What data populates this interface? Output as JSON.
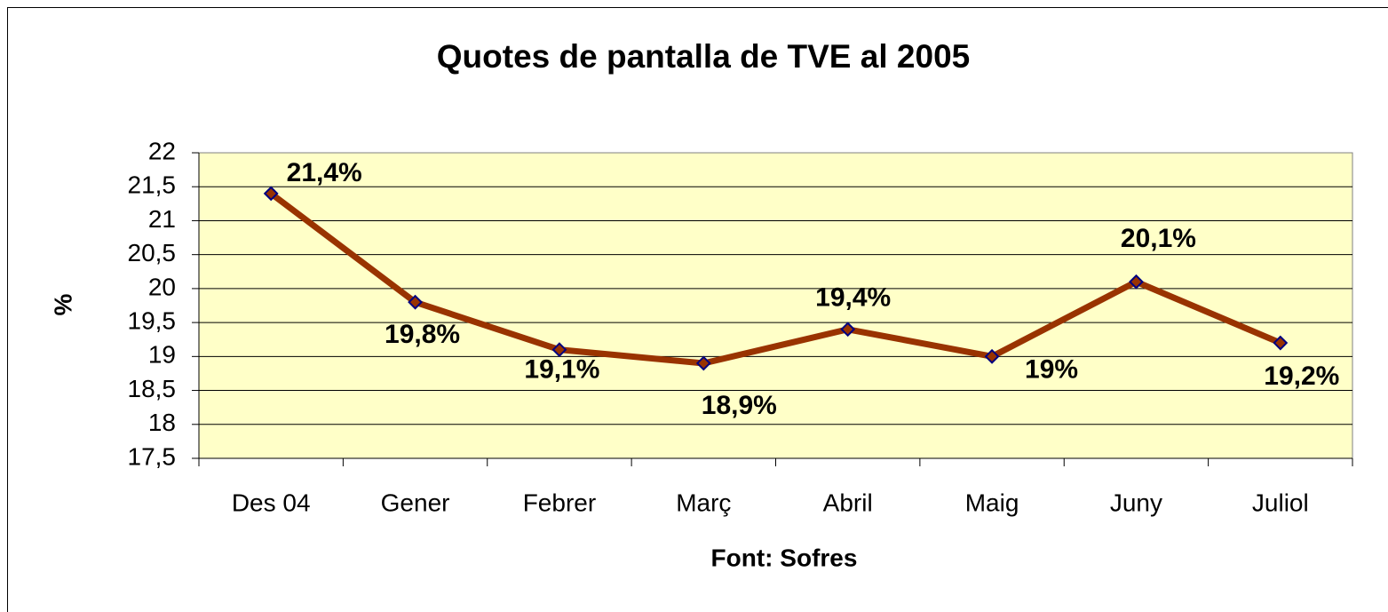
{
  "chart_data": {
    "type": "line",
    "title": "Quotes de pantalla de TVE al 2005",
    "y_label": "%",
    "x_label": "Font: Sofres",
    "categories": [
      "Des 04",
      "Gener",
      "Febrer",
      "Març",
      "Abril",
      "Maig",
      "Juny",
      "Juliol"
    ],
    "series": [
      {
        "name": "TVE",
        "color": "#993300",
        "marker_stroke": "#000080",
        "values": [
          21.4,
          19.8,
          19.1,
          18.9,
          19.4,
          19,
          20.1,
          19.2
        ],
        "value_labels": [
          "21,4%",
          "19,8%",
          "19,1%",
          "18,9%",
          "19,4%",
          "19%",
          "20,1%",
          "19,2%"
        ]
      }
    ],
    "ylim": [
      17.5,
      22
    ],
    "yticks": [
      {
        "value": 17.5,
        "label": "17,5"
      },
      18,
      {
        "value": 18.5,
        "label": "18,5"
      },
      19,
      {
        "value": 19.5,
        "label": "19,5"
      },
      20,
      {
        "value": 20.5,
        "label": "20,5"
      },
      21,
      {
        "value": 21.5,
        "label": "21,5"
      },
      22
    ],
    "grid": true,
    "plot_background": "#FFFFC8"
  }
}
